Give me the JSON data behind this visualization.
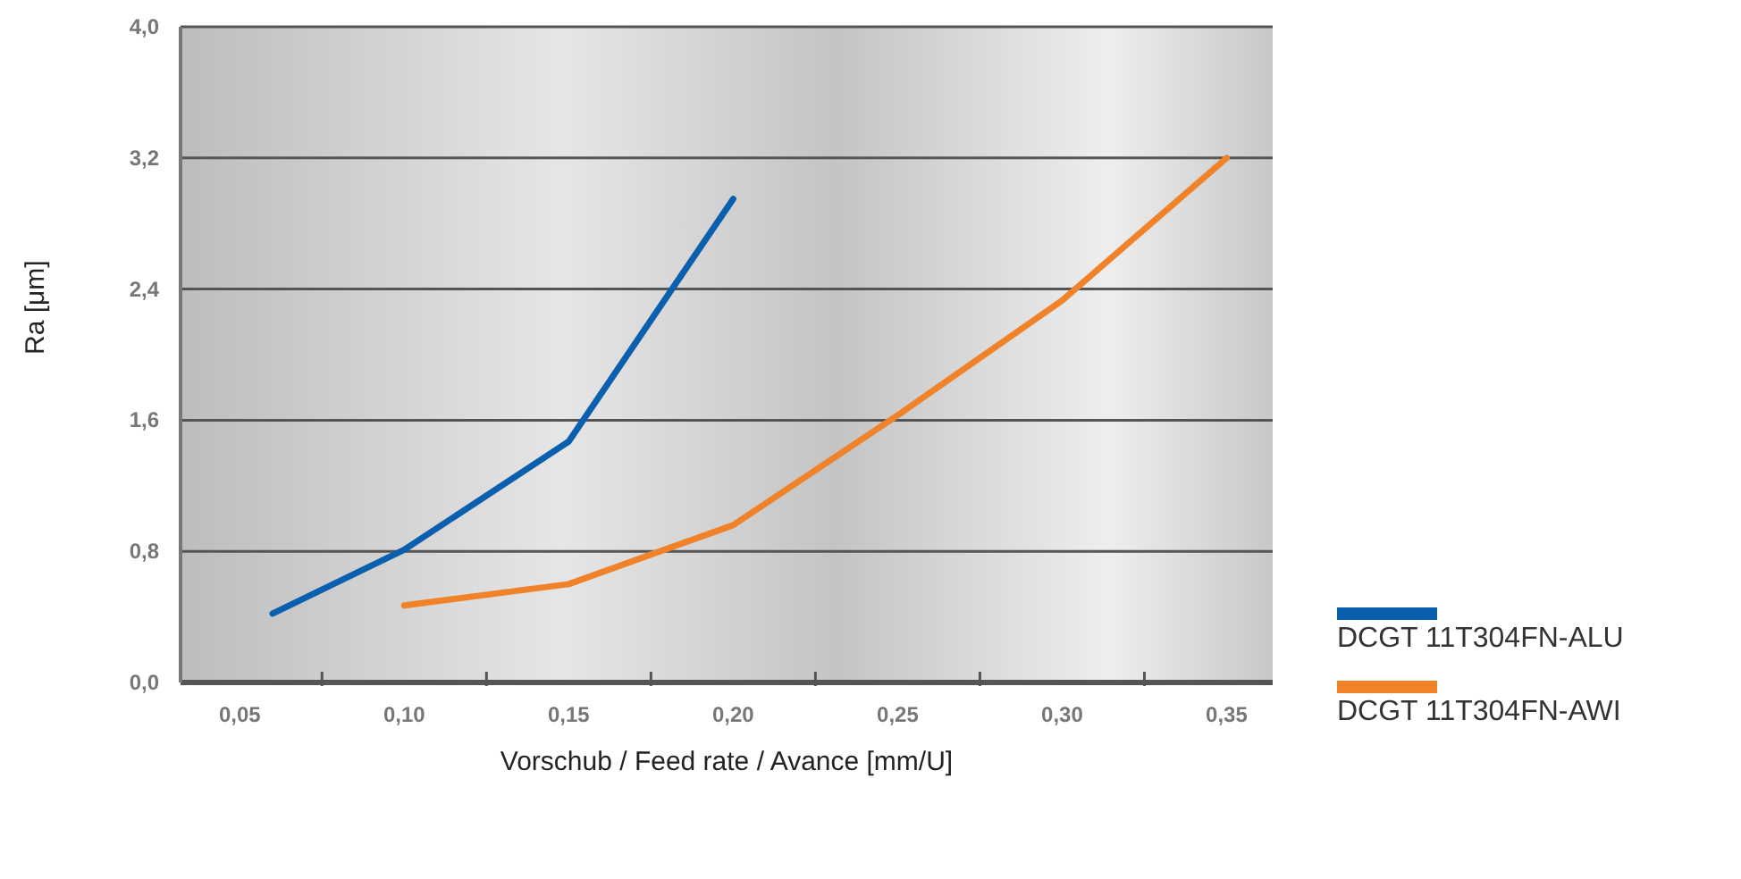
{
  "chart_data": {
    "type": "line",
    "xlabel": "Vorschub / Feed rate / Avance [mm/U]",
    "ylabel": "Ra [μm]",
    "series": [
      {
        "name": "DCGT 11T304FN-ALU",
        "color": "#0a5fae",
        "x": [
          0.06,
          0.1,
          0.15,
          0.2
        ],
        "values": [
          0.42,
          0.81,
          1.47,
          2.95
        ]
      },
      {
        "name": "DCGT 11T304FN-AWI",
        "color": "#f0832a",
        "x": [
          0.1,
          0.15,
          0.2,
          0.25,
          0.3,
          0.35
        ],
        "values": [
          0.47,
          0.6,
          0.96,
          1.63,
          2.33,
          3.2
        ]
      }
    ],
    "xlim": [
      0.032,
      0.364
    ],
    "xticks": [
      {
        "value": 0.05,
        "label": "0,05"
      },
      {
        "value": 0.075,
        "label": null
      },
      {
        "value": 0.1,
        "label": "0,10"
      },
      {
        "value": 0.125,
        "label": null
      },
      {
        "value": 0.15,
        "label": "0,15"
      },
      {
        "value": 0.175,
        "label": null
      },
      {
        "value": 0.2,
        "label": "0,20"
      },
      {
        "value": 0.225,
        "label": null
      },
      {
        "value": 0.25,
        "label": "0,25"
      },
      {
        "value": 0.275,
        "label": null
      },
      {
        "value": 0.3,
        "label": "0,30"
      },
      {
        "value": 0.325,
        "label": null
      },
      {
        "value": 0.35,
        "label": "0,35"
      }
    ],
    "ylim": [
      0,
      4
    ],
    "yticks": [
      {
        "value": 0,
        "label": "0,0"
      },
      {
        "value": 0.8,
        "label": "0,8"
      },
      {
        "value": 1.6,
        "label": "1,6"
      },
      {
        "value": 2.4,
        "label": "2,4"
      },
      {
        "value": 3.2,
        "label": "3,2"
      },
      {
        "value": 4,
        "label": "4,0"
      }
    ],
    "grid": "y",
    "legend": "right",
    "marker": "none",
    "line_style": "solid"
  }
}
